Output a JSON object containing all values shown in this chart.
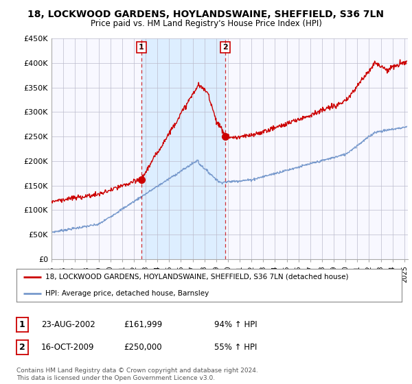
{
  "title": "18, LOCKWOOD GARDENS, HOYLANDSWAINE, SHEFFIELD, S36 7LN",
  "subtitle": "Price paid vs. HM Land Registry's House Price Index (HPI)",
  "legend_line1": "18, LOCKWOOD GARDENS, HOYLANDSWAINE, SHEFFIELD, S36 7LN (detached house)",
  "legend_line2": "HPI: Average price, detached house, Barnsley",
  "annotation1_date": "23-AUG-2002",
  "annotation1_price": "£161,999",
  "annotation1_hpi": "94% ↑ HPI",
  "annotation2_date": "16-OCT-2009",
  "annotation2_price": "£250,000",
  "annotation2_hpi": "55% ↑ HPI",
  "footer": "Contains HM Land Registry data © Crown copyright and database right 2024.\nThis data is licensed under the Open Government Licence v3.0.",
  "red_color": "#cc0000",
  "blue_color": "#7799cc",
  "shade_color": "#ddeeff",
  "background_color": "#f5f5f5",
  "plot_bg_color": "#f8f8ff",
  "ylim": [
    0,
    450000
  ],
  "yticks": [
    0,
    50000,
    100000,
    150000,
    200000,
    250000,
    300000,
    350000,
    400000,
    450000
  ],
  "ytick_labels": [
    "£0",
    "£50K",
    "£100K",
    "£150K",
    "£200K",
    "£250K",
    "£300K",
    "£350K",
    "£400K",
    "£450K"
  ],
  "sale1_x": 2002.64,
  "sale1_y": 161999,
  "sale2_x": 2009.79,
  "sale2_y": 250000,
  "xlim_left": 1995,
  "xlim_right": 2025.3
}
